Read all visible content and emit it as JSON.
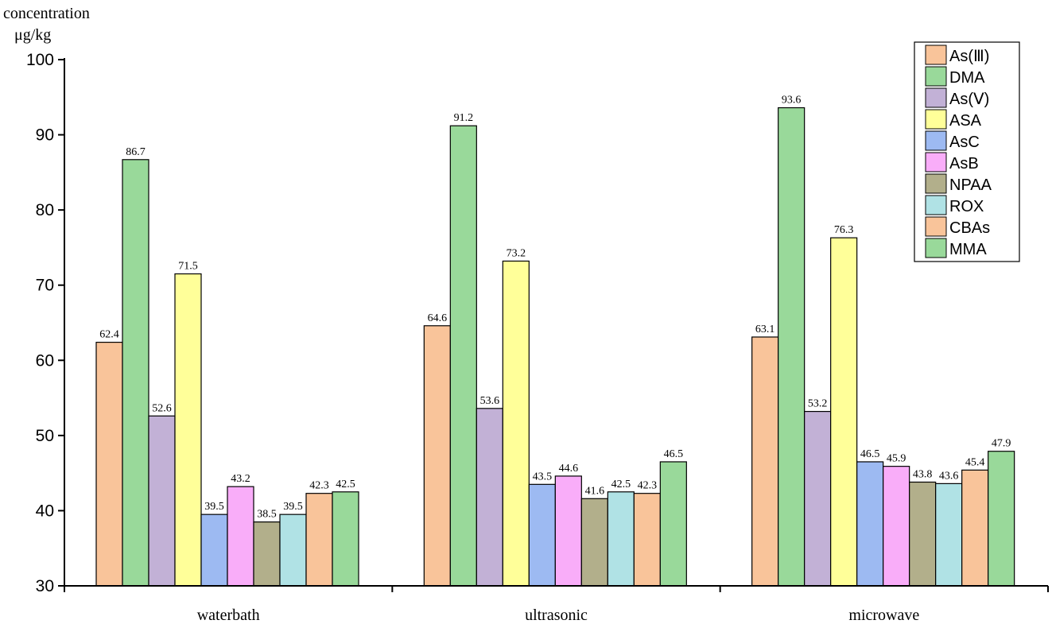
{
  "chart_data": {
    "type": "bar",
    "ylabel_line1": "concentration",
    "ylabel_line2": "μg/kg",
    "ylim": [
      30,
      100
    ],
    "yticks": [
      30,
      40,
      50,
      60,
      70,
      80,
      90,
      100
    ],
    "categories": [
      "waterbath",
      "ultrasonic",
      "microwave"
    ],
    "legend_position": "top-right",
    "grid": false,
    "series": [
      {
        "name": "As(Ⅲ)",
        "color": "#F9C49A",
        "values": [
          62.4,
          64.6,
          63.1
        ]
      },
      {
        "name": "DMA",
        "color": "#99D99A",
        "values": [
          86.7,
          91.2,
          93.6
        ]
      },
      {
        "name": "As(Ⅴ)",
        "color": "#C2B1D6",
        "values": [
          52.6,
          53.6,
          53.2
        ]
      },
      {
        "name": "ASA",
        "color": "#FFFF99",
        "values": [
          71.5,
          73.2,
          76.3
        ]
      },
      {
        "name": "AsC",
        "color": "#9DBAF2",
        "values": [
          39.5,
          43.5,
          46.5
        ]
      },
      {
        "name": "AsB",
        "color": "#F9ADF9",
        "values": [
          43.2,
          44.6,
          45.9
        ]
      },
      {
        "name": "NPAA",
        "color": "#B2AF8B",
        "values": [
          38.5,
          41.6,
          43.8
        ]
      },
      {
        "name": "ROX",
        "color": "#B0E2E5",
        "values": [
          39.5,
          42.5,
          43.6
        ]
      },
      {
        "name": "CBAs",
        "color": "#F9C49A",
        "values": [
          42.3,
          42.3,
          45.4
        ]
      },
      {
        "name": "MMA",
        "color": "#99D99A",
        "values": [
          42.5,
          46.5,
          47.9
        ]
      }
    ]
  }
}
